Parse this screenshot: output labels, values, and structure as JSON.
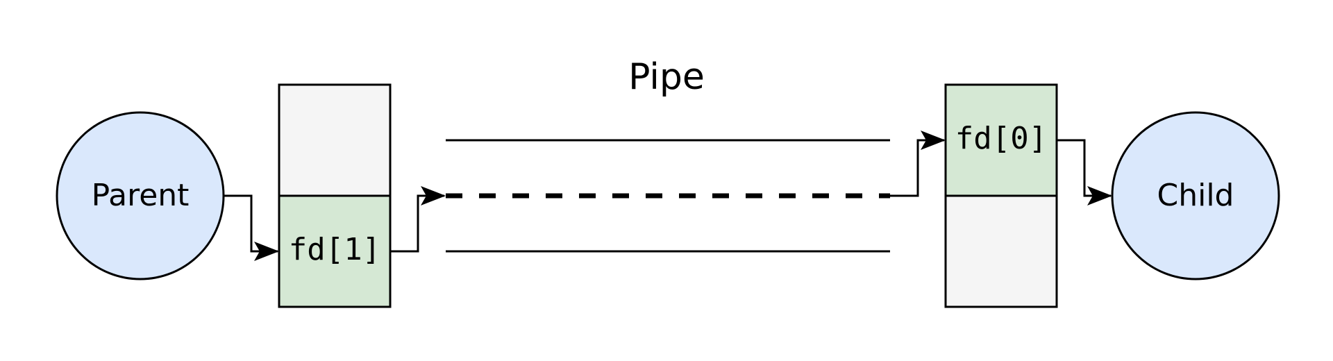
{
  "diagram": {
    "title": "Pipe",
    "parent_label": "Parent",
    "child_label": "Child",
    "write_fd_label": "fd[1]",
    "read_fd_label": "fd[0]"
  },
  "colors": {
    "process_fill": "#dae8fc",
    "fd_fill": "#d5e8d4",
    "empty_fill": "#f5f5f5",
    "stroke": "#000000"
  }
}
